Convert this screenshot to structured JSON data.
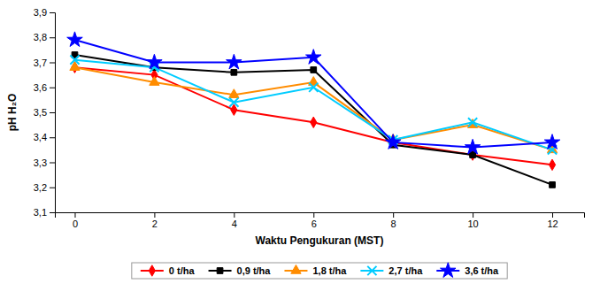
{
  "chart_data": {
    "type": "line",
    "xlabel": "Waktu Pengukuran (MST)",
    "ylabel": "pH H₂O",
    "x": [
      0,
      2,
      4,
      6,
      8,
      10,
      12
    ],
    "series": [
      {
        "name": "0 t/ha",
        "color": "#FF0000",
        "marker": "diamond",
        "values": [
          3.68,
          3.65,
          3.51,
          3.46,
          3.38,
          3.33,
          3.29
        ]
      },
      {
        "name": "0,9 t/ha",
        "color": "#000000",
        "marker": "square",
        "values": [
          3.73,
          3.68,
          3.66,
          3.67,
          3.37,
          3.33,
          3.21
        ]
      },
      {
        "name": "1,8 t/ha",
        "color": "#FF8C00",
        "marker": "triangle",
        "values": [
          3.68,
          3.62,
          3.57,
          3.62,
          3.39,
          3.45,
          3.35
        ]
      },
      {
        "name": "2,7 t/ha",
        "color": "#00CCFF",
        "marker": "x",
        "values": [
          3.71,
          3.68,
          3.54,
          3.6,
          3.39,
          3.46,
          3.35
        ]
      },
      {
        "name": "3,6 t/ha",
        "color": "#0000FF",
        "marker": "star",
        "values": [
          3.79,
          3.7,
          3.7,
          3.72,
          3.38,
          3.36,
          3.38
        ]
      }
    ],
    "xlim": [
      -0.5,
      12.8
    ],
    "xticks": [
      0,
      2,
      4,
      6,
      8,
      10,
      12
    ],
    "ylim": [
      3.1,
      3.9
    ],
    "yticks": [
      {
        "value": 3.1,
        "label": "3,1"
      },
      {
        "value": 3.2,
        "label": "3,2"
      },
      {
        "value": 3.3,
        "label": "3,3"
      },
      {
        "value": 3.4,
        "label": "3,4"
      },
      {
        "value": 3.5,
        "label": "3,5"
      },
      {
        "value": 3.6,
        "label": "3,6"
      },
      {
        "value": 3.7,
        "label": "3,7"
      },
      {
        "value": 3.8,
        "label": "3,8"
      },
      {
        "value": 3.9,
        "label": "3,9"
      }
    ],
    "grid": false,
    "legend": "bottom"
  }
}
